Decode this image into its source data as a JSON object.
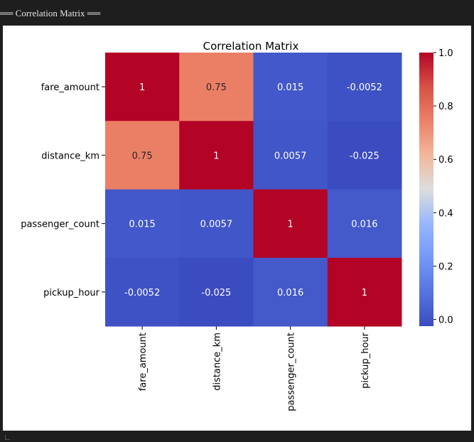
{
  "header": {
    "label": "══ Correlation Matrix ══"
  },
  "chart_data": {
    "type": "heatmap",
    "title": "Correlation Matrix",
    "row_labels": [
      "fare_amount",
      "distance_km",
      "passenger_count",
      "pickup_hour"
    ],
    "column_labels": [
      "fare_amount",
      "distance_km",
      "passenger_count",
      "pickup_hour"
    ],
    "values": [
      [
        1,
        0.75,
        0.015,
        -0.0052
      ],
      [
        0.75,
        1,
        0.0057,
        -0.025
      ],
      [
        0.015,
        0.0057,
        1,
        0.016
      ],
      [
        -0.0052,
        -0.025,
        0.016,
        1
      ]
    ],
    "cell_labels": [
      [
        "1",
        "0.75",
        "0.015",
        "-0.0052"
      ],
      [
        "0.75",
        "1",
        "0.0057",
        "-0.025"
      ],
      [
        "0.015",
        "0.0057",
        "1",
        "0.016"
      ],
      [
        "-0.0052",
        "-0.025",
        "0.016",
        "1"
      ]
    ],
    "colormap": "coolwarm",
    "colorbar": {
      "range": [
        -0.025,
        1.0
      ],
      "ticks": [
        0.0,
        0.2,
        0.4,
        0.6,
        0.8,
        1.0
      ],
      "tick_labels": [
        "0.0",
        "0.2",
        "0.4",
        "0.6",
        "0.8",
        "1.0"
      ]
    },
    "text_color_light": "#ffffff",
    "text_color_dark": "#262626"
  }
}
